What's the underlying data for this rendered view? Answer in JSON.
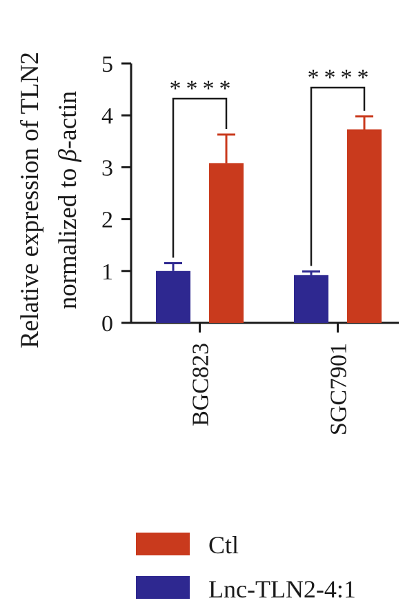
{
  "chart_data": {
    "type": "bar",
    "categories": [
      "BGC823",
      "SGC7901"
    ],
    "series": [
      {
        "name": "Lnc-TLN2-4:1",
        "values": [
          1.0,
          0.92
        ],
        "errors": [
          0.15,
          0.07
        ],
        "color": "#2e2890"
      },
      {
        "name": "Ctl",
        "values": [
          3.08,
          3.73
        ],
        "errors": [
          0.55,
          0.25
        ],
        "color": "#c93a1d"
      }
    ],
    "ylabel_line1": "Relative expression of TLN2",
    "ylabel_line2_prefix": "normalized to ",
    "ylabel_line2_symbol": "β",
    "ylabel_line2_suffix": "-actin",
    "yticks": [
      "0",
      "1",
      "2",
      "3",
      "4",
      "5"
    ],
    "ylim": [
      0,
      5
    ],
    "significance": [
      "****",
      "****"
    ],
    "legend": [
      {
        "label": "Ctl",
        "color": "#c93a1d"
      },
      {
        "label": "Lnc-TLN2-4:1",
        "color": "#2e2890"
      }
    ],
    "legend_position": "bottom",
    "grid": false
  }
}
